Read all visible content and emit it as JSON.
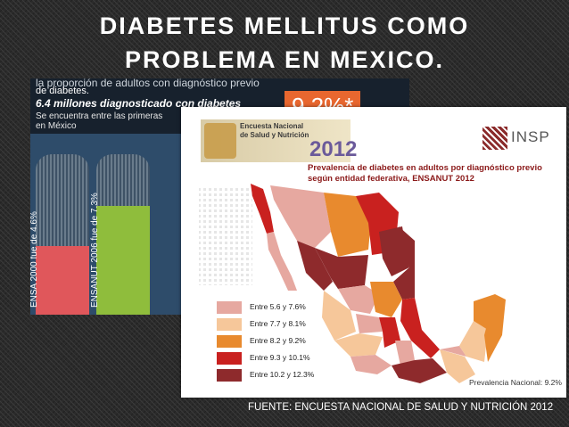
{
  "title": {
    "line1": "DIABETES MELLITUS COMO",
    "line2": "PROBLEMA EN MEXICO."
  },
  "back_slide": {
    "line_partial": "la proporción de adultos con diagnóstico previo",
    "line2": "de diabetes.",
    "line3": "6.4 millones diagnosticado con diabetes",
    "line4a": "Se encuentra entre las primeras",
    "line4b": "en México",
    "percentage": "9.2%*",
    "bars": [
      {
        "label": "ENSA 2000 fue de 4.6%",
        "value": 4.6,
        "color": "#e0575b"
      },
      {
        "label": "ENSANUT 2006 fue de 7.3%",
        "value": 7.3,
        "color": "#8fbd3c"
      }
    ]
  },
  "front_slide": {
    "logo_text": "Encuesta Nacional de Salud y Nutrición",
    "logo_year": "2012",
    "insp_label": "INSP",
    "map_title": "Prevalencia de diabetes  en adultos por diagnóstico previo según entidad federativa, ENSANUT 2012",
    "legend": [
      {
        "label": "Entre 5.6 y 7.6%",
        "color": "#e6a8a0"
      },
      {
        "label": "Entre 7.7 y 8.1%",
        "color": "#f6c79a"
      },
      {
        "label": "Entre 8.2 y 9.2%",
        "color": "#e88a2e"
      },
      {
        "label": "Entre 9.3 y 10.1%",
        "color": "#c9211f"
      },
      {
        "label": "Entre 10.2 y 12.3%",
        "color": "#8e2a2c"
      }
    ],
    "national": "Prevalencia Nacional: 9.2%"
  },
  "caption": "FUENTE: ENCUESTA NACIONAL DE SALUD Y NUTRICIÓN 2012"
}
